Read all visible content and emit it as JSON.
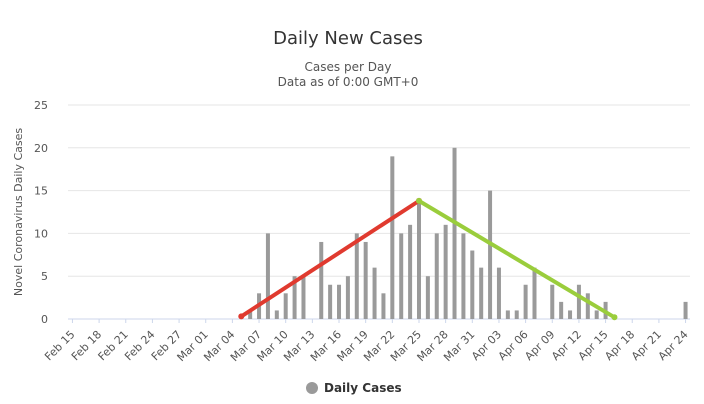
{
  "chart_data": {
    "type": "bar",
    "title": "Daily New Cases",
    "subtitle_lines": [
      "Cases per Day",
      "Data as of 0:00 GMT+0"
    ],
    "ylabel": "Novel Coronavirus Daily Cases",
    "xlabel": "",
    "ylim": [
      0,
      25
    ],
    "yticks": [
      0,
      5,
      10,
      15,
      20,
      25
    ],
    "grid": true,
    "legend_position": "bottom-center",
    "x_tick_labels": [
      "Feb 15",
      "Feb 18",
      "Feb 21",
      "Feb 24",
      "Feb 27",
      "Mar 01",
      "Mar 04",
      "Mar 07",
      "Mar 10",
      "Mar 13",
      "Mar 16",
      "Mar 19",
      "Mar 22",
      "Mar 25",
      "Mar 28",
      "Mar 31",
      "Apr 03",
      "Apr 06",
      "Apr 09",
      "Apr 12",
      "Apr 15",
      "Apr 18",
      "Apr 21",
      "Apr 24"
    ],
    "categories": [
      "Feb 15",
      "Feb 16",
      "Feb 17",
      "Feb 18",
      "Feb 19",
      "Feb 20",
      "Feb 21",
      "Feb 22",
      "Feb 23",
      "Feb 24",
      "Feb 25",
      "Feb 26",
      "Feb 27",
      "Feb 28",
      "Feb 29",
      "Mar 01",
      "Mar 02",
      "Mar 03",
      "Mar 04",
      "Mar 05",
      "Mar 06",
      "Mar 07",
      "Mar 08",
      "Mar 09",
      "Mar 10",
      "Mar 11",
      "Mar 12",
      "Mar 13",
      "Mar 14",
      "Mar 15",
      "Mar 16",
      "Mar 17",
      "Mar 18",
      "Mar 19",
      "Mar 20",
      "Mar 21",
      "Mar 22",
      "Mar 23",
      "Mar 24",
      "Mar 25",
      "Mar 26",
      "Mar 27",
      "Mar 28",
      "Mar 29",
      "Mar 30",
      "Mar 31",
      "Apr 01",
      "Apr 02",
      "Apr 03",
      "Apr 04",
      "Apr 05",
      "Apr 06",
      "Apr 07",
      "Apr 08",
      "Apr 09",
      "Apr 10",
      "Apr 11",
      "Apr 12",
      "Apr 13",
      "Apr 14",
      "Apr 15",
      "Apr 16",
      "Apr 17",
      "Apr 18",
      "Apr 19",
      "Apr 20",
      "Apr 21",
      "Apr 22",
      "Apr 23",
      "Apr 24"
    ],
    "series": [
      {
        "name": "Daily Cases",
        "color": "#9a9a9a",
        "values": [
          0,
          0,
          0,
          0,
          0,
          0,
          0,
          0,
          0,
          0,
          0,
          0,
          0,
          0,
          0,
          0,
          0,
          0,
          0,
          0,
          1,
          3,
          10,
          1,
          3,
          5,
          5,
          0,
          9,
          4,
          4,
          5,
          10,
          9,
          6,
          3,
          19,
          10,
          11,
          14,
          5,
          10,
          11,
          20,
          10,
          8,
          6,
          15,
          6,
          1,
          1,
          4,
          6,
          0,
          4,
          2,
          1,
          4,
          3,
          1,
          2,
          0,
          0,
          0,
          0,
          0,
          0,
          0,
          0,
          2
        ]
      }
    ],
    "trend_lines": [
      {
        "color": "#e03a2f",
        "from": {
          "x": "Mar 05",
          "y": 0.3
        },
        "to": {
          "x": "Mar 25",
          "y": 13.8
        }
      },
      {
        "color": "#9acd3c",
        "from": {
          "x": "Mar 25",
          "y": 13.8
        },
        "to": {
          "x": "Apr 16",
          "y": 0.2
        }
      }
    ]
  },
  "legend": {
    "label": "Daily Cases",
    "color": "#9a9a9a"
  },
  "colors": {
    "grid": "#e6e6e6",
    "axis": "#ccd6eb"
  }
}
